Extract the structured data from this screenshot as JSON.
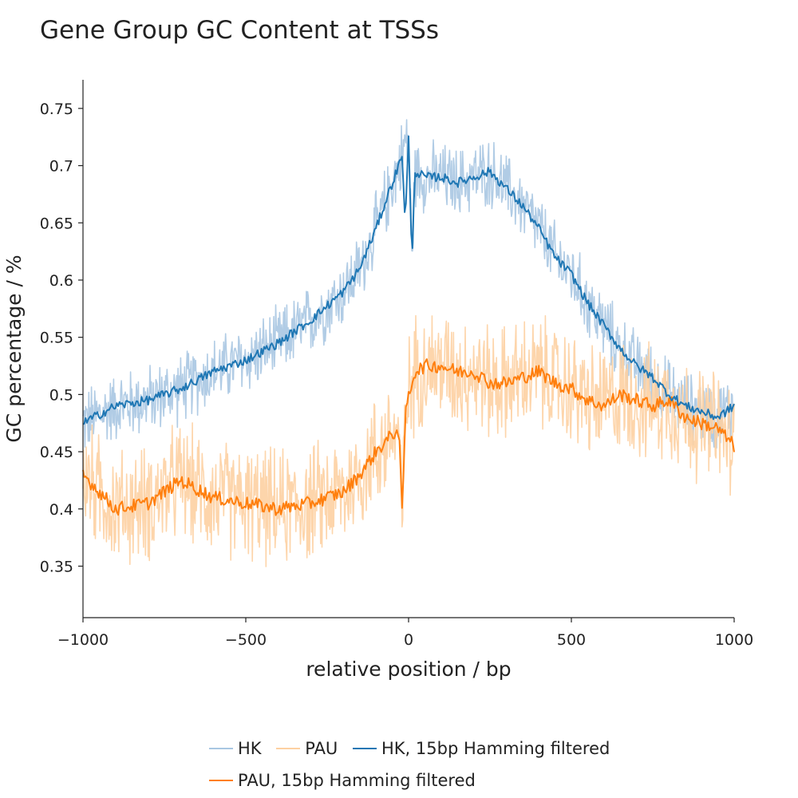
{
  "chart_data": {
    "type": "line",
    "title": "Gene Group GC Content at TSSs",
    "xlabel": "relative position / bp",
    "ylabel": "GC percentage / %",
    "xlim": [
      -1000,
      1000
    ],
    "ylim": [
      0.305,
      0.775
    ],
    "xticks": [
      -1000,
      -500,
      0,
      500,
      1000
    ],
    "xtick_labels": [
      "−1000",
      "−500",
      "0",
      "500",
      "1000"
    ],
    "yticks": [
      0.35,
      0.4,
      0.45,
      0.5,
      0.55,
      0.6,
      0.65,
      0.7,
      0.75
    ],
    "ytick_labels": [
      "0.35",
      "0.4",
      "0.45",
      "0.5",
      "0.55",
      "0.6",
      "0.65",
      "0.7",
      "0.75"
    ],
    "grid": false,
    "legend_position": "bottom-center",
    "series": [
      {
        "name": "HK",
        "color": "#a9c7e2",
        "style": "raw-noisy",
        "x": [
          -1000,
          -900,
          -800,
          -700,
          -600,
          -500,
          -400,
          -300,
          -200,
          -150,
          -100,
          -50,
          -30,
          -20,
          -10,
          0,
          10,
          20,
          50,
          100,
          150,
          200,
          250,
          300,
          350,
          400,
          450,
          500,
          550,
          600,
          650,
          700,
          750,
          800,
          850,
          900,
          950,
          1000
        ],
        "y": [
          0.475,
          0.49,
          0.495,
          0.505,
          0.52,
          0.53,
          0.545,
          0.565,
          0.59,
          0.61,
          0.645,
          0.685,
          0.7,
          0.71,
          0.72,
          0.725,
          0.62,
          0.695,
          0.69,
          0.69,
          0.685,
          0.69,
          0.695,
          0.68,
          0.665,
          0.645,
          0.62,
          0.605,
          0.58,
          0.56,
          0.54,
          0.525,
          0.515,
          0.5,
          0.49,
          0.485,
          0.48,
          0.49
        ]
      },
      {
        "name": "PAU",
        "color": "#fdd0a2",
        "style": "raw-noisy",
        "x": [
          -1000,
          -900,
          -800,
          -700,
          -600,
          -500,
          -400,
          -300,
          -200,
          -150,
          -100,
          -50,
          -30,
          -20,
          -10,
          0,
          10,
          20,
          50,
          100,
          150,
          200,
          250,
          300,
          350,
          400,
          450,
          500,
          550,
          600,
          650,
          700,
          750,
          800,
          850,
          900,
          950,
          1000
        ],
        "y": [
          0.43,
          0.4,
          0.405,
          0.425,
          0.41,
          0.405,
          0.4,
          0.405,
          0.415,
          0.43,
          0.45,
          0.465,
          0.47,
          0.39,
          0.48,
          0.5,
          0.51,
          0.52,
          0.525,
          0.525,
          0.52,
          0.52,
          0.51,
          0.51,
          0.515,
          0.52,
          0.51,
          0.505,
          0.495,
          0.49,
          0.5,
          0.495,
          0.49,
          0.495,
          0.48,
          0.475,
          0.47,
          0.455
        ]
      },
      {
        "name": "HK, 15bp Hamming filtered",
        "color": "#1f77b4",
        "style": "smooth",
        "x": [
          -1000,
          -900,
          -800,
          -700,
          -600,
          -500,
          -400,
          -300,
          -200,
          -150,
          -100,
          -50,
          -30,
          -20,
          -10,
          0,
          10,
          20,
          50,
          100,
          150,
          200,
          250,
          300,
          350,
          400,
          450,
          500,
          550,
          600,
          650,
          700,
          750,
          800,
          850,
          900,
          950,
          1000
        ],
        "y": [
          0.475,
          0.49,
          0.495,
          0.505,
          0.52,
          0.53,
          0.545,
          0.565,
          0.59,
          0.61,
          0.645,
          0.685,
          0.7,
          0.71,
          0.65,
          0.725,
          0.615,
          0.695,
          0.69,
          0.69,
          0.685,
          0.69,
          0.695,
          0.68,
          0.665,
          0.645,
          0.62,
          0.605,
          0.58,
          0.56,
          0.54,
          0.525,
          0.515,
          0.5,
          0.49,
          0.485,
          0.48,
          0.49
        ]
      },
      {
        "name": "PAU, 15bp Hamming filtered",
        "color": "#ff7f0e",
        "style": "smooth",
        "x": [
          -1000,
          -900,
          -800,
          -700,
          -600,
          -500,
          -400,
          -300,
          -200,
          -150,
          -100,
          -50,
          -30,
          -20,
          -10,
          0,
          10,
          20,
          50,
          100,
          150,
          200,
          250,
          300,
          350,
          400,
          450,
          500,
          550,
          600,
          650,
          700,
          750,
          800,
          850,
          900,
          950,
          1000
        ],
        "y": [
          0.43,
          0.4,
          0.405,
          0.425,
          0.41,
          0.405,
          0.4,
          0.405,
          0.415,
          0.43,
          0.45,
          0.465,
          0.47,
          0.395,
          0.48,
          0.5,
          0.51,
          0.52,
          0.525,
          0.525,
          0.52,
          0.52,
          0.51,
          0.51,
          0.515,
          0.52,
          0.51,
          0.505,
          0.495,
          0.49,
          0.5,
          0.495,
          0.49,
          0.495,
          0.48,
          0.475,
          0.47,
          0.455
        ]
      }
    ]
  }
}
